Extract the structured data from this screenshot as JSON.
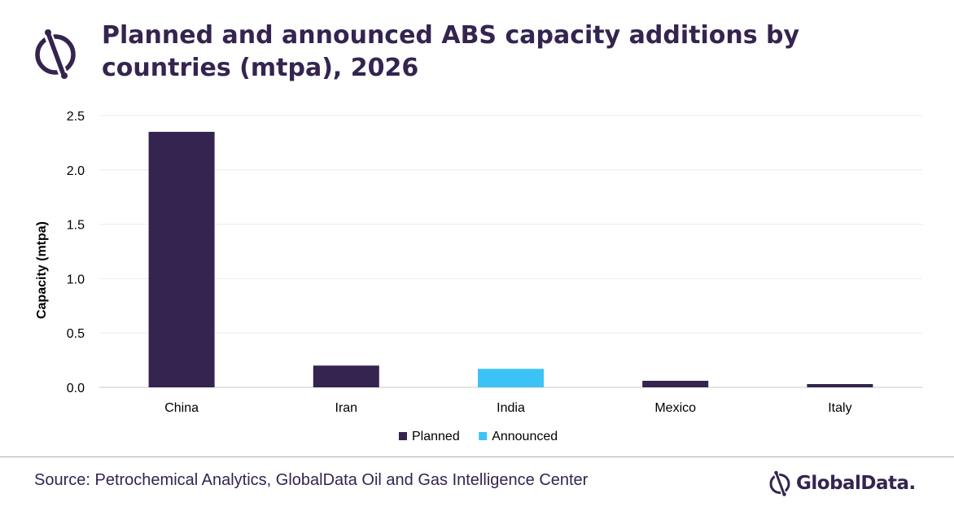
{
  "header": {
    "title": "Planned and announced ABS capacity additions by countries (mtpa), 2026",
    "logo_icon": "globaldata-mark-icon"
  },
  "footer": {
    "source": "Source: Petrochemical Analytics, GlobalData Oil and Gas Intelligence Center",
    "brand_name": "GlobalData.",
    "brand_icon": "globaldata-mark-icon"
  },
  "colors": {
    "planned": "#34244f",
    "announced": "#3cc3f5",
    "text": "#34244f"
  },
  "chart_data": {
    "type": "bar",
    "title": "Planned and announced ABS capacity additions by countries (mtpa), 2026",
    "categories": [
      "China",
      "Iran",
      "India",
      "Mexico",
      "Italy"
    ],
    "series": [
      {
        "name": "Planned",
        "color": "#34244f",
        "values": [
          2.35,
          0.2,
          0,
          0.06,
          0.03
        ]
      },
      {
        "name": "Announced",
        "color": "#3cc3f5",
        "values": [
          0,
          0,
          0.17,
          0,
          0
        ]
      }
    ],
    "xlabel": "",
    "ylabel": "Capacity (mtpa)",
    "ylim": [
      0,
      2.5
    ],
    "yticks": [
      "0.0",
      "0.5",
      "1.0",
      "1.5",
      "2.0",
      "2.5"
    ],
    "grid": true,
    "legend": "bottom-center"
  }
}
